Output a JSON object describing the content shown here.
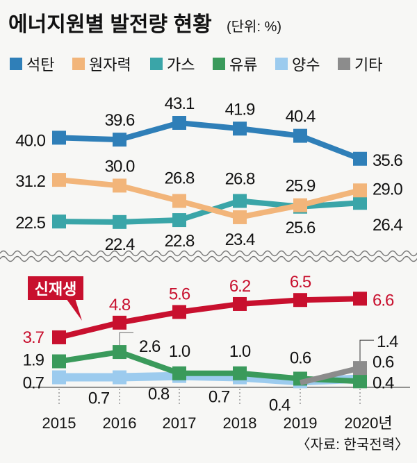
{
  "chart_data": {
    "type": "line",
    "title": "에너지원별 발전량 현황",
    "unit": "(단위: %)",
    "source": "〈자료: 한국전력〉",
    "x": [
      "2015",
      "2016",
      "2017",
      "2018",
      "2019",
      "2020년"
    ],
    "axis_break": true,
    "series": [
      {
        "name": "석탄",
        "color": "#2f7fb8",
        "panel": "upper",
        "values": [
          40.0,
          39.6,
          43.1,
          41.9,
          40.4,
          35.6
        ]
      },
      {
        "name": "원자력",
        "color": "#f2b57a",
        "panel": "upper",
        "values": [
          31.2,
          30.0,
          26.8,
          23.4,
          25.9,
          29.0
        ]
      },
      {
        "name": "가스",
        "color": "#3aa5a8",
        "panel": "upper",
        "values": [
          22.5,
          22.4,
          22.8,
          26.8,
          25.6,
          26.4
        ]
      },
      {
        "name": "신재생",
        "color": "#c8102e",
        "panel": "lower",
        "values": [
          3.7,
          4.8,
          5.6,
          6.2,
          6.5,
          6.6
        ]
      },
      {
        "name": "양수",
        "color": "#9ccbee",
        "panel": "lower",
        "values": [
          0.7,
          0.7,
          0.8,
          0.7,
          0.4,
          0.6
        ]
      },
      {
        "name": "유류",
        "color": "#3a9a5b",
        "panel": "lower",
        "values": [
          1.9,
          2.6,
          1.0,
          1.0,
          0.6,
          0.4
        ]
      },
      {
        "name": "기타",
        "color": "#8c8c8c",
        "panel": "lower",
        "values": [
          null,
          null,
          null,
          null,
          null,
          1.4
        ]
      }
    ],
    "legend": [
      "석탄",
      "원자력",
      "가스",
      "유류",
      "양수",
      "기타"
    ],
    "callout_label": "신재생"
  }
}
